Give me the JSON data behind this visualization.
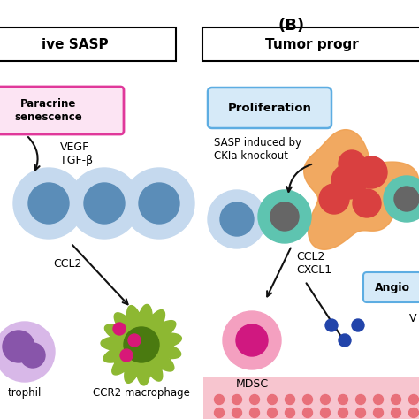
{
  "bg_color": "#ffffff",
  "title_b": "(B)",
  "left_panel_title": "ive SASP",
  "right_panel_title": "Tumor progr",
  "paracrine_label": "Paracrine\nsenescence",
  "paracrine_bg": "#fce4f3",
  "paracrine_border": "#e0389a",
  "vegf_tgf_label": "VEGF\nTGF-β",
  "proliferation_label": "Proliferation",
  "prolif_bg": "#d6eaf8",
  "prolif_border": "#5dade2",
  "sasp_label": "SASP induced by\nCKIa knockout",
  "ccl2_left": "CCL2",
  "ccl2_right": "CCL2\nCXCL1",
  "mdsc_label": "MDSC",
  "angio_label": "Angio",
  "neutrophil_label": "trophil",
  "macrophage_label": "CCR2 macrophage",
  "cell_light_blue": "#c5d9ee",
  "cell_blue": "#5b8db8",
  "cell_teal_outer": "#5ec4b0",
  "cell_dark_gray": "#666666",
  "cell_orange": "#f0a050",
  "cell_orange2": "#e8b878",
  "cell_red": "#d94040",
  "cell_pink_outer": "#f4a0c0",
  "cell_magenta": "#d01880",
  "cell_purple_outer": "#d8b8e8",
  "cell_purple": "#8855aa",
  "cell_green_outer": "#8db832",
  "cell_green": "#4a7a10",
  "dot_magenta": "#d81878",
  "dot_blue": "#2244aa",
  "vessel_pink": "#f7c5cf",
  "vessel_dot": "#e8707a",
  "arrow_color": "#111111"
}
